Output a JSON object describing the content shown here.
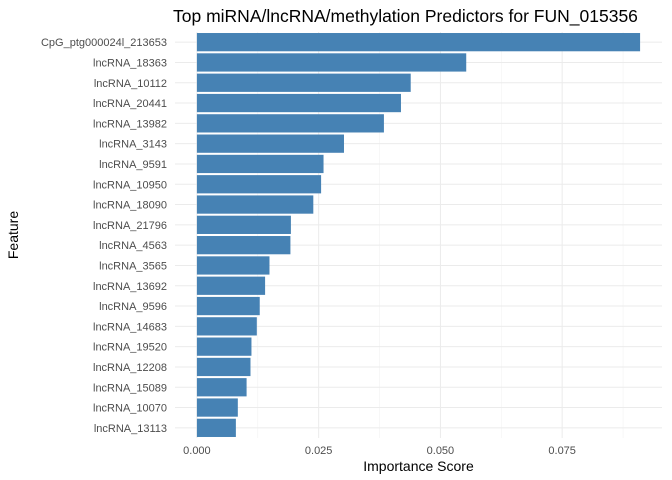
{
  "chart_data": {
    "type": "bar",
    "orientation": "horizontal",
    "title": "Top miRNA/lncRNA/methylation Predictors for FUN_015356",
    "xlabel": "Importance Score",
    "ylabel": "Feature",
    "bar_color": "#4682b4",
    "grid": true,
    "xlim": [
      -0.0045,
      0.0955
    ],
    "xticks": [
      0.0,
      0.025,
      0.05,
      0.075
    ],
    "xtick_labels": [
      "0.000",
      "0.025",
      "0.050",
      "0.075"
    ],
    "categories": [
      "CpG_ptg000024l_213653",
      "lncRNA_18363",
      "lncRNA_10112",
      "lncRNA_20441",
      "lncRNA_13982",
      "lncRNA_3143",
      "lncRNA_9591",
      "lncRNA_10950",
      "lncRNA_18090",
      "lncRNA_21796",
      "lncRNA_4563",
      "lncRNA_3565",
      "lncRNA_13692",
      "lncRNA_9596",
      "lncRNA_14683",
      "lncRNA_19520",
      "lncRNA_12208",
      "lncRNA_15089",
      "lncRNA_10070",
      "lncRNA_13113"
    ],
    "values": [
      0.091,
      0.0553,
      0.0439,
      0.0419,
      0.0384,
      0.0302,
      0.026,
      0.0255,
      0.0239,
      0.0193,
      0.0192,
      0.0149,
      0.014,
      0.0129,
      0.0123,
      0.0112,
      0.011,
      0.0102,
      0.0084,
      0.008
    ]
  }
}
